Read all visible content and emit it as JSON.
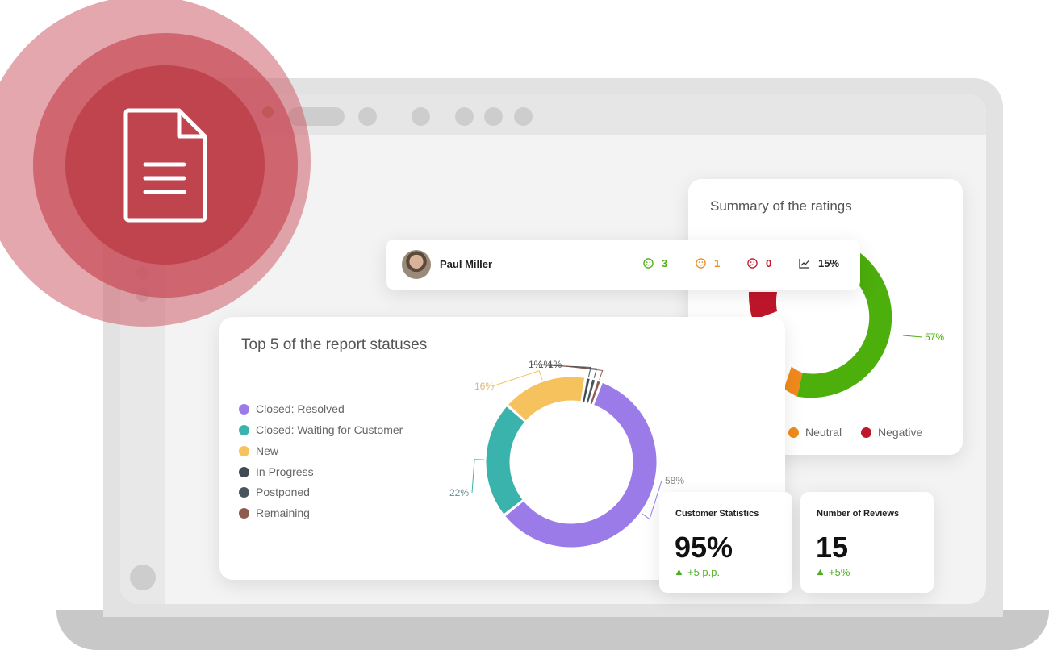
{
  "ratings_card": {
    "title": "Summary of the ratings",
    "positive_label": "57%",
    "legend": [
      {
        "label": "Neutral",
        "color": "#f08a1c"
      },
      {
        "label": "Negative",
        "color": "#c0162b"
      }
    ],
    "colors": {
      "positive": "#4caf0c",
      "neutral": "#f08a1c",
      "negative": "#c0162b"
    }
  },
  "user_row": {
    "name": "Paul Miller",
    "positive_count": "3",
    "neutral_count": "1",
    "negative_count": "0",
    "trend": "15%",
    "icons": [
      "smile-icon",
      "neutral-face-icon",
      "sad-face-icon",
      "trend-chart-icon"
    ]
  },
  "status_card": {
    "title": "Top 5 of the report statuses",
    "legend": [
      {
        "label": "Closed: Resolved",
        "color": "#9b7be8"
      },
      {
        "label": "Closed: Waiting for Customer",
        "color": "#3ab3ad"
      },
      {
        "label": "New",
        "color": "#f5c25e"
      },
      {
        "label": "In Progress",
        "color": "#414a52"
      },
      {
        "label": "Postponed",
        "color": "#49545c"
      },
      {
        "label": "Remaining",
        "color": "#8f5a50"
      }
    ]
  },
  "chart_data": {
    "type": "pie",
    "categories": [
      "Closed: Resolved",
      "Closed: Waiting for Customer",
      "New",
      "In Progress",
      "Postponed",
      "Remaining"
    ],
    "values": [
      58,
      22,
      16,
      1,
      1,
      1
    ],
    "labels": [
      "58%",
      "22%",
      "16%",
      "1%",
      "1%",
      "1%"
    ],
    "colors": [
      "#9b7be8",
      "#3ab3ad",
      "#f5c25e",
      "#414a52",
      "#49545c",
      "#8f5a50"
    ]
  },
  "stats": [
    {
      "label": "Customer Statistics",
      "value": "95%",
      "delta": "+5 p.p."
    },
    {
      "label": "Number of Reviews",
      "value": "15",
      "delta": "+5%"
    }
  ]
}
